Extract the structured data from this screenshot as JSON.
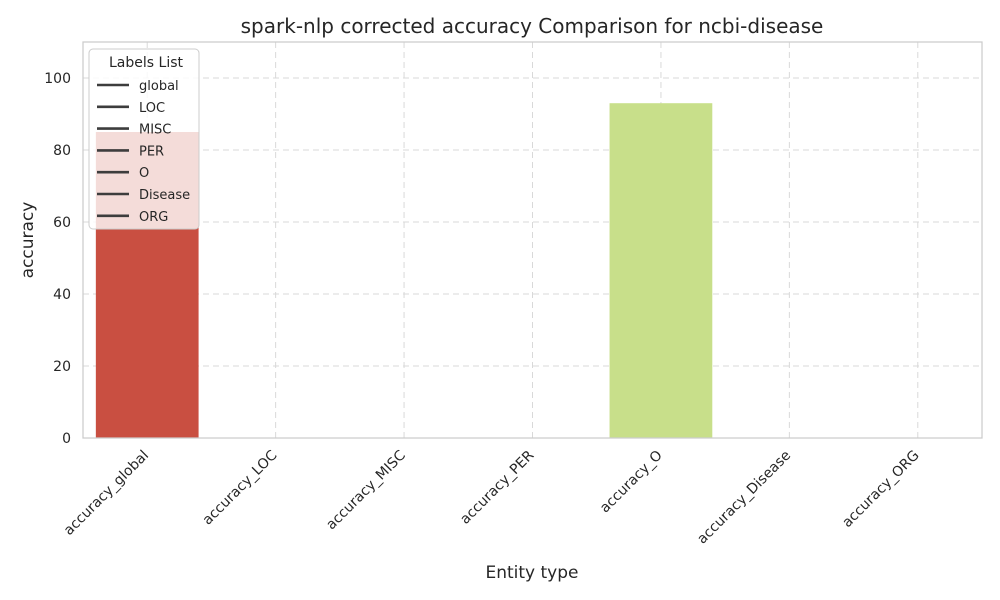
{
  "chart_data": {
    "type": "bar",
    "title": "spark-nlp corrected accuracy Comparison for ncbi-disease",
    "xlabel": "Entity type",
    "ylabel": "accuracy",
    "categories": [
      "accuracy_global",
      "accuracy_LOC",
      "accuracy_MISC",
      "accuracy_PER",
      "accuracy_O",
      "accuracy_Disease",
      "accuracy_ORG"
    ],
    "values": [
      85,
      0,
      0,
      0,
      93,
      0,
      0
    ],
    "bar_colors": [
      "#c94f41",
      "#d98a3b",
      "#d8c85a",
      "#b4d46a",
      "#c8df8a",
      "#8fc4a0",
      "#6a9fc7"
    ],
    "ylim": [
      0,
      110
    ],
    "yticks": [
      0,
      20,
      40,
      60,
      80,
      100
    ],
    "grid": true,
    "legend": {
      "title": "Labels List",
      "placement": "top-left",
      "entries": [
        "global",
        "LOC",
        "MISC",
        "PER",
        "O",
        "Disease",
        "ORG"
      ]
    }
  }
}
